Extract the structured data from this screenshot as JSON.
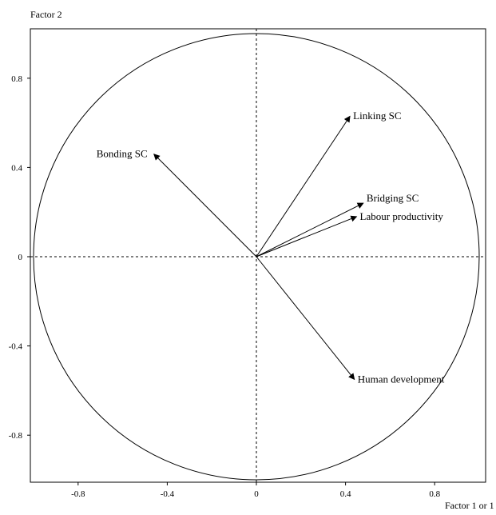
{
  "chart_data": {
    "type": "scatter",
    "subtype": "correlation-circle-biplot",
    "title": "",
    "xlabel": "Factor 1 or 1",
    "ylabel": "Factor 2",
    "xlim": [
      -1.0,
      1.0
    ],
    "ylim": [
      -1.0,
      1.0
    ],
    "xticks": [
      -0.8,
      -0.4,
      0,
      0.4,
      0.8
    ],
    "yticks": [
      -0.8,
      -0.4,
      0,
      0.4,
      0.8
    ],
    "xtick_labels": [
      "-0.8",
      "-0.4",
      "0",
      "0.4",
      "0.8"
    ],
    "ytick_labels": [
      "-0.8",
      "-0.4",
      "0",
      "0.4",
      "0.8"
    ],
    "grid": false,
    "unit_circle": true,
    "zero_lines": "dashed",
    "vectors": [
      {
        "label": "Linking SC",
        "x": 0.42,
        "y": 0.63
      },
      {
        "label": "Bonding SC",
        "x": -0.46,
        "y": 0.46
      },
      {
        "label": "Bridging SC",
        "x": 0.48,
        "y": 0.24
      },
      {
        "label": "Labour productivity",
        "x": 0.45,
        "y": 0.18
      },
      {
        "label": "Human development",
        "x": 0.44,
        "y": -0.55
      }
    ],
    "colors": {
      "line": "#000000",
      "background": "#ffffff"
    }
  }
}
